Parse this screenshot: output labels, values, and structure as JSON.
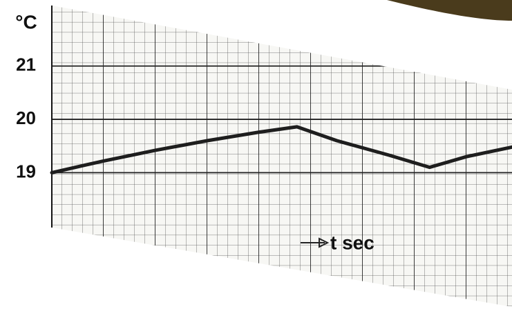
{
  "chart_data": {
    "type": "line",
    "y_label": "°C",
    "x_label": "t sec",
    "x": [
      0,
      1,
      2,
      3,
      4,
      4.73,
      5.5,
      6.5,
      7.29,
      8,
      8.88
    ],
    "series": [
      {
        "color": "#1e1e1e",
        "values": [
          19.0,
          19.22,
          19.42,
          19.6,
          19.76,
          19.86,
          19.6,
          19.33,
          19.1,
          19.3,
          19.48
        ]
      }
    ],
    "xlim": [
      0,
      8.88
    ],
    "ylim": [
      18,
      22.2
    ],
    "yticks": [
      19,
      20,
      21
    ],
    "grid": true
  }
}
